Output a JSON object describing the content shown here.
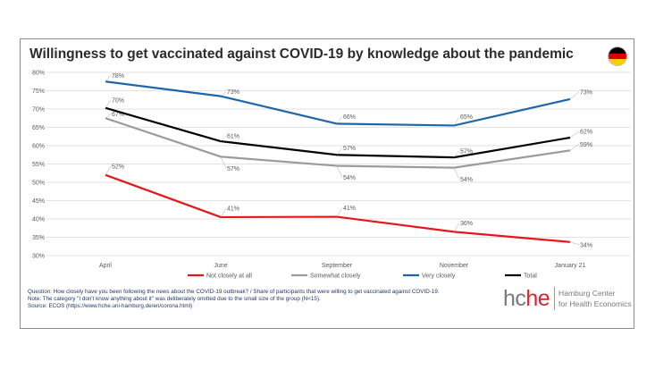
{
  "title": "Willingness to get vaccinated against COVID-19 by knowledge about the pandemic",
  "flag": {
    "colors": [
      "#000000",
      "#dd0000",
      "#ffce00"
    ]
  },
  "notes": [
    "Question: How closely have you been following the news about the COVID-19 outbreak? / Share of participants that were willing to get vaccinated against COVID-19.",
    "Note: The category \"I don't know anything about it\" was deliberately omitted due to the small size of the group (N<15).",
    "Source: ECOS (https://www.hche.uni-hamburg.de/en/corona.html)"
  ],
  "logo": {
    "mark_prefix": "hc",
    "mark_accent": "he",
    "line1": "Hamburg Center",
    "line2": "for Health Economics"
  },
  "chart_data": {
    "type": "line",
    "title": "Willingness to get vaccinated against COVID-19 by knowledge about the pandemic",
    "xlabel": "",
    "ylabel": "",
    "categories": [
      "April",
      "June",
      "September",
      "November",
      "January 21"
    ],
    "ylim": [
      30,
      80
    ],
    "yticks": [
      30,
      35,
      40,
      45,
      50,
      55,
      60,
      65,
      70,
      75,
      80
    ],
    "ytick_suffix": "%",
    "grid": true,
    "legend_position": "bottom",
    "series": [
      {
        "name": "Not closely at all",
        "color": "#e8151b",
        "values": [
          52,
          40.5,
          40.6,
          36.5,
          33.7
        ],
        "labels": [
          "52%",
          "41%",
          "41%",
          "36%",
          "34%"
        ]
      },
      {
        "name": "Somewhat closely",
        "color": "#9b9b9b",
        "values": [
          67.5,
          57,
          54.5,
          54,
          58.7
        ],
        "labels": [
          "67%",
          "57%",
          "54%",
          "54%",
          "59%"
        ]
      },
      {
        "name": "Very closely",
        "color": "#1f66a6",
        "values": [
          77.5,
          73.5,
          66,
          65.5,
          72.7
        ],
        "labels": [
          "78%",
          "73%",
          "66%",
          "65%",
          "73%"
        ]
      },
      {
        "name": "Total",
        "color": "#000000",
        "values": [
          70.3,
          61.2,
          57.5,
          56.8,
          62.2
        ],
        "labels": [
          "70%",
          "61%",
          "57%",
          "57%",
          "62%"
        ]
      }
    ]
  }
}
